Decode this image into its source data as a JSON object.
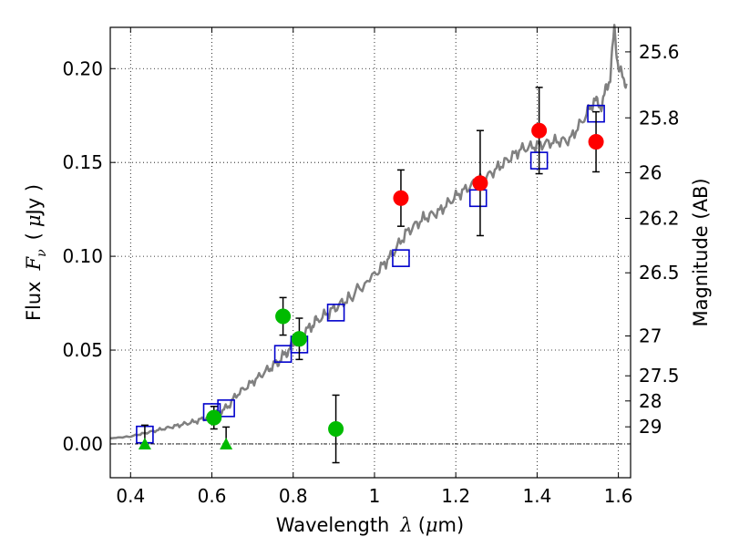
{
  "chart_data": {
    "type": "scatter",
    "xlabel": {
      "text": "Wavelength",
      "symbol": "λ",
      "unit_open": "(",
      "unit_mu": "μ",
      "unit_rest": "m)"
    },
    "ylabel": {
      "text": "Flux",
      "symbol": "F",
      "sub": "ν",
      "unit_open": "(",
      "unit_mu": "μ",
      "unit_rest": "Jy )"
    },
    "y2label": "Magnitude (AB)",
    "xlim": [
      0.35,
      1.63
    ],
    "ylim": [
      -0.018,
      0.222
    ],
    "grid": true,
    "x_ticks": [
      {
        "value": 0.4,
        "label": "0.4"
      },
      {
        "value": 0.6,
        "label": "0.6"
      },
      {
        "value": 0.8,
        "label": "0.8"
      },
      {
        "value": 1.0,
        "label": "1"
      },
      {
        "value": 1.2,
        "label": "1.2"
      },
      {
        "value": 1.4,
        "label": "1.4"
      },
      {
        "value": 1.6,
        "label": "1.6"
      }
    ],
    "y_ticks": [
      {
        "value": 0.0,
        "label": "0.00"
      },
      {
        "value": 0.05,
        "label": "0.05"
      },
      {
        "value": 0.1,
        "label": "0.10"
      },
      {
        "value": 0.15,
        "label": "0.15"
      },
      {
        "value": 0.2,
        "label": "0.20"
      }
    ],
    "magnitude_ticks": [
      {
        "value": 25.6,
        "label": "25.6"
      },
      {
        "value": 25.8,
        "label": "25.8"
      },
      {
        "value": 26.0,
        "label": "26"
      },
      {
        "value": 26.2,
        "label": "26.2"
      },
      {
        "value": 26.5,
        "label": "26.5"
      },
      {
        "value": 27.0,
        "label": "27"
      },
      {
        "value": 27.5,
        "label": "27.5"
      },
      {
        "value": 28.0,
        "label": "28"
      },
      {
        "value": 29.0,
        "label": "29"
      }
    ],
    "spectrum": {
      "color": "#808080",
      "x": [
        0.35,
        0.4,
        0.44,
        0.48,
        0.52,
        0.56,
        0.6,
        0.62,
        0.64,
        0.66,
        0.7,
        0.74,
        0.76,
        0.78,
        0.8,
        0.84,
        0.86,
        0.9,
        0.94,
        1.0,
        1.04,
        1.08,
        1.12,
        1.16,
        1.2,
        1.24,
        1.28,
        1.32,
        1.36,
        1.4,
        1.44,
        1.48,
        1.52,
        1.54,
        1.56,
        1.57,
        1.58,
        1.59,
        1.6,
        1.62
      ],
      "y": [
        0.003,
        0.004,
        0.006,
        0.008,
        0.01,
        0.012,
        0.015,
        0.017,
        0.02,
        0.026,
        0.033,
        0.04,
        0.043,
        0.048,
        0.053,
        0.062,
        0.066,
        0.072,
        0.078,
        0.09,
        0.1,
        0.113,
        0.12,
        0.124,
        0.132,
        0.138,
        0.143,
        0.15,
        0.157,
        0.159,
        0.161,
        0.162,
        0.175,
        0.183,
        0.18,
        0.19,
        0.195,
        0.222,
        0.2,
        0.192
      ]
    },
    "series": [
      {
        "marker": "square",
        "color": "#0000cc",
        "x": [
          0.435,
          0.6,
          0.635,
          0.775,
          0.815,
          0.905,
          1.065,
          1.255,
          1.405,
          1.545
        ],
        "y": [
          0.005,
          0.017,
          0.019,
          0.048,
          0.053,
          0.07,
          0.099,
          0.131,
          0.151,
          0.176
        ]
      },
      {
        "marker": "circle",
        "color": "#00bb00",
        "x": [
          0.605,
          0.775,
          0.815,
          0.905
        ],
        "y": [
          0.014,
          0.068,
          0.056,
          0.008
        ],
        "yerr": [
          0.006,
          0.01,
          0.011,
          0.018
        ]
      },
      {
        "marker": "triangle",
        "color": "#00bb00",
        "x": [
          0.435,
          0.635
        ],
        "y": [
          0.0,
          0.0
        ],
        "upper": [
          0.01,
          0.009
        ]
      },
      {
        "marker": "circle",
        "color": "#ff0000",
        "x": [
          1.065,
          1.26,
          1.405,
          1.545
        ],
        "y": [
          0.131,
          0.139,
          0.167,
          0.161
        ],
        "yerr": [
          0.015,
          0.028,
          0.023,
          0.016
        ]
      }
    ]
  }
}
